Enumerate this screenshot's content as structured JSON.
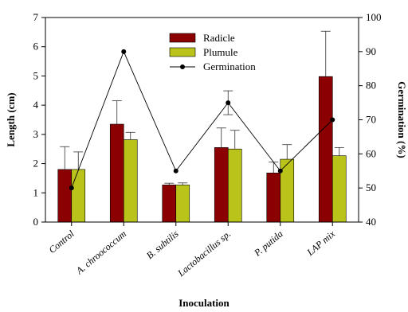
{
  "chart_data": {
    "type": "bar",
    "categories": [
      "Control",
      "A. chroococcum",
      "B. subtilis",
      "Lactobacillus sp.",
      "P. putida",
      "LAP mix"
    ],
    "category_italic": [
      false,
      true,
      true,
      true,
      true,
      false
    ],
    "xlabel": "Inoculation",
    "ylabel": "Length (cm)",
    "y2label": "Germination (%)",
    "ylim": [
      0,
      7
    ],
    "yticks": [
      0,
      1,
      2,
      3,
      4,
      5,
      6,
      7
    ],
    "y2lim": [
      40,
      100
    ],
    "y2ticks": [
      40,
      50,
      60,
      70,
      80,
      90,
      100
    ],
    "series": [
      {
        "name": "Radicle",
        "kind": "bar",
        "color": "#8b0000",
        "values": [
          1.8,
          3.35,
          1.27,
          2.55,
          1.68,
          4.98
        ],
        "errors": [
          0.78,
          0.8,
          0.06,
          0.67,
          0.37,
          1.55
        ]
      },
      {
        "name": "Plumule",
        "kind": "bar",
        "color": "#b9c31a",
        "values": [
          1.8,
          2.82,
          1.27,
          2.5,
          2.15,
          2.27
        ],
        "errors": [
          0.6,
          0.25,
          0.07,
          0.64,
          0.5,
          0.28
        ]
      },
      {
        "name": "Germination",
        "kind": "line",
        "axis": "right",
        "color": "#000000",
        "values": [
          50,
          90,
          55,
          75,
          55,
          70
        ],
        "errors": [
          0,
          0,
          0,
          3.5,
          0,
          0
        ]
      }
    ],
    "legend_position": "top-center",
    "grid": false
  }
}
